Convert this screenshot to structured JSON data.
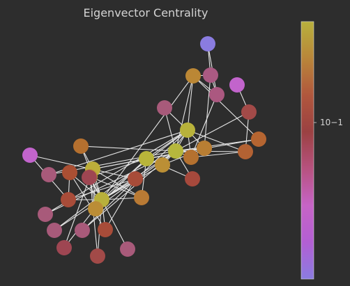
{
  "chart_data": {
    "type": "network",
    "title": "Eigenvector Centrality",
    "colorbar": {
      "scale": "log",
      "ticks": [
        0.1
      ],
      "tick_labels": [
        "10−1"
      ],
      "colors": [
        "#8a7ce0",
        "#b35fd3",
        "#c664c6",
        "#b7527f",
        "#9b4142",
        "#b1573d",
        "#b9863a",
        "#b8b03c"
      ]
    },
    "nodes": [
      {
        "id": 0,
        "centrality": 0.355,
        "color": "#b8b03c"
      },
      {
        "id": 1,
        "centrality": 0.266,
        "color": "#bcae3a"
      },
      {
        "id": 2,
        "centrality": 0.317,
        "color": "#b9b53a"
      },
      {
        "id": 3,
        "centrality": 0.211,
        "color": "#bd9537"
      },
      {
        "id": 4,
        "centrality": 0.076,
        "color": "#aa4f33"
      },
      {
        "id": 5,
        "centrality": 0.079,
        "color": "#a84c39"
      },
      {
        "id": 6,
        "centrality": 0.079,
        "color": "#a84c39"
      },
      {
        "id": 7,
        "centrality": 0.171,
        "color": "#b97a34"
      },
      {
        "id": 8,
        "centrality": 0.227,
        "color": "#bb8f35"
      },
      {
        "id": 9,
        "centrality": 0.103,
        "color": "#a6493c"
      },
      {
        "id": 10,
        "centrality": 0.076,
        "color": "#a84c39"
      },
      {
        "id": 11,
        "centrality": 0.053,
        "color": "#a85a7a"
      },
      {
        "id": 12,
        "centrality": 0.084,
        "color": "#a24a48"
      },
      {
        "id": 13,
        "centrality": 0.226,
        "color": "#bb8d36"
      },
      {
        "id": 14,
        "centrality": 0.101,
        "color": "#a85a7a"
      },
      {
        "id": 15,
        "centrality": 0.101,
        "color": "#a85a7a"
      },
      {
        "id": 16,
        "centrality": 0.024,
        "color": "#c264cc"
      },
      {
        "id": 17,
        "centrality": 0.092,
        "color": "#9e4652"
      },
      {
        "id": 18,
        "centrality": 0.101,
        "color": "#a85a7a"
      },
      {
        "id": 19,
        "centrality": 0.148,
        "color": "#b5702f"
      },
      {
        "id": 20,
        "centrality": 0.101,
        "color": "#a85a7a"
      },
      {
        "id": 21,
        "centrality": 0.092,
        "color": "#9e4652"
      },
      {
        "id": 22,
        "centrality": 0.101,
        "color": "#a85a7a"
      },
      {
        "id": 23,
        "centrality": 0.15,
        "color": "#b5712f"
      },
      {
        "id": 24,
        "centrality": 0.057,
        "color": "#ab5a83"
      },
      {
        "id": 25,
        "centrality": 0.059,
        "color": "#ab5880"
      },
      {
        "id": 26,
        "centrality": 0.076,
        "color": "#a24a48"
      },
      {
        "id": 27,
        "centrality": 0.133,
        "color": "#b36233"
      },
      {
        "id": 28,
        "centrality": 0.131,
        "color": "#b56531"
      },
      {
        "id": 29,
        "centrality": 0.135,
        "color": "#b36233"
      },
      {
        "id": 30,
        "centrality": 0.175,
        "color": "#b97e33"
      },
      {
        "id": 31,
        "centrality": 0.191,
        "color": "#bb8735"
      },
      {
        "id": 32,
        "centrality": 0.309,
        "color": "#b8b23b"
      },
      {
        "id": 33,
        "centrality": 0.373,
        "color": "#b6b73d"
      },
      {
        "id": 34,
        "centrality": 0.013,
        "color": "#8a7ce0"
      },
      {
        "id": 35,
        "centrality": 0.021,
        "color": "#c264cc"
      }
    ],
    "edges": [
      [
        0,
        1
      ],
      [
        0,
        2
      ],
      [
        0,
        3
      ],
      [
        0,
        4
      ],
      [
        0,
        5
      ],
      [
        0,
        6
      ],
      [
        0,
        7
      ],
      [
        0,
        8
      ],
      [
        0,
        10
      ],
      [
        0,
        11
      ],
      [
        0,
        12
      ],
      [
        0,
        13
      ],
      [
        0,
        17
      ],
      [
        0,
        19
      ],
      [
        0,
        21
      ],
      [
        0,
        31
      ],
      [
        1,
        2
      ],
      [
        1,
        3
      ],
      [
        1,
        7
      ],
      [
        1,
        13
      ],
      [
        1,
        17
      ],
      [
        1,
        19
      ],
      [
        1,
        21
      ],
      [
        1,
        30
      ],
      [
        2,
        3
      ],
      [
        2,
        7
      ],
      [
        2,
        8
      ],
      [
        2,
        9
      ],
      [
        2,
        13
      ],
      [
        2,
        27
      ],
      [
        2,
        28
      ],
      [
        2,
        32
      ],
      [
        3,
        7
      ],
      [
        3,
        12
      ],
      [
        3,
        13
      ],
      [
        4,
        6
      ],
      [
        4,
        10
      ],
      [
        5,
        6
      ],
      [
        5,
        10
      ],
      [
        5,
        16
      ],
      [
        6,
        16
      ],
      [
        8,
        30
      ],
      [
        8,
        32
      ],
      [
        8,
        33
      ],
      [
        9,
        33
      ],
      [
        13,
        33
      ],
      [
        14,
        32
      ],
      [
        14,
        33
      ],
      [
        15,
        32
      ],
      [
        15,
        33
      ],
      [
        18,
        32
      ],
      [
        18,
        33
      ],
      [
        19,
        33
      ],
      [
        20,
        32
      ],
      [
        20,
        33
      ],
      [
        22,
        32
      ],
      [
        22,
        33
      ],
      [
        23,
        25
      ],
      [
        23,
        27
      ],
      [
        23,
        29
      ],
      [
        23,
        32
      ],
      [
        23,
        33
      ],
      [
        24,
        25
      ],
      [
        24,
        27
      ],
      [
        24,
        31
      ],
      [
        25,
        31
      ],
      [
        26,
        29
      ],
      [
        26,
        33
      ],
      [
        27,
        33
      ],
      [
        28,
        31
      ],
      [
        28,
        33
      ],
      [
        29,
        32
      ],
      [
        29,
        33
      ],
      [
        30,
        32
      ],
      [
        30,
        33
      ],
      [
        31,
        32
      ],
      [
        31,
        33
      ],
      [
        32,
        33
      ],
      [
        24,
        34
      ],
      [
        25,
        34
      ],
      [
        26,
        35
      ]
    ]
  }
}
